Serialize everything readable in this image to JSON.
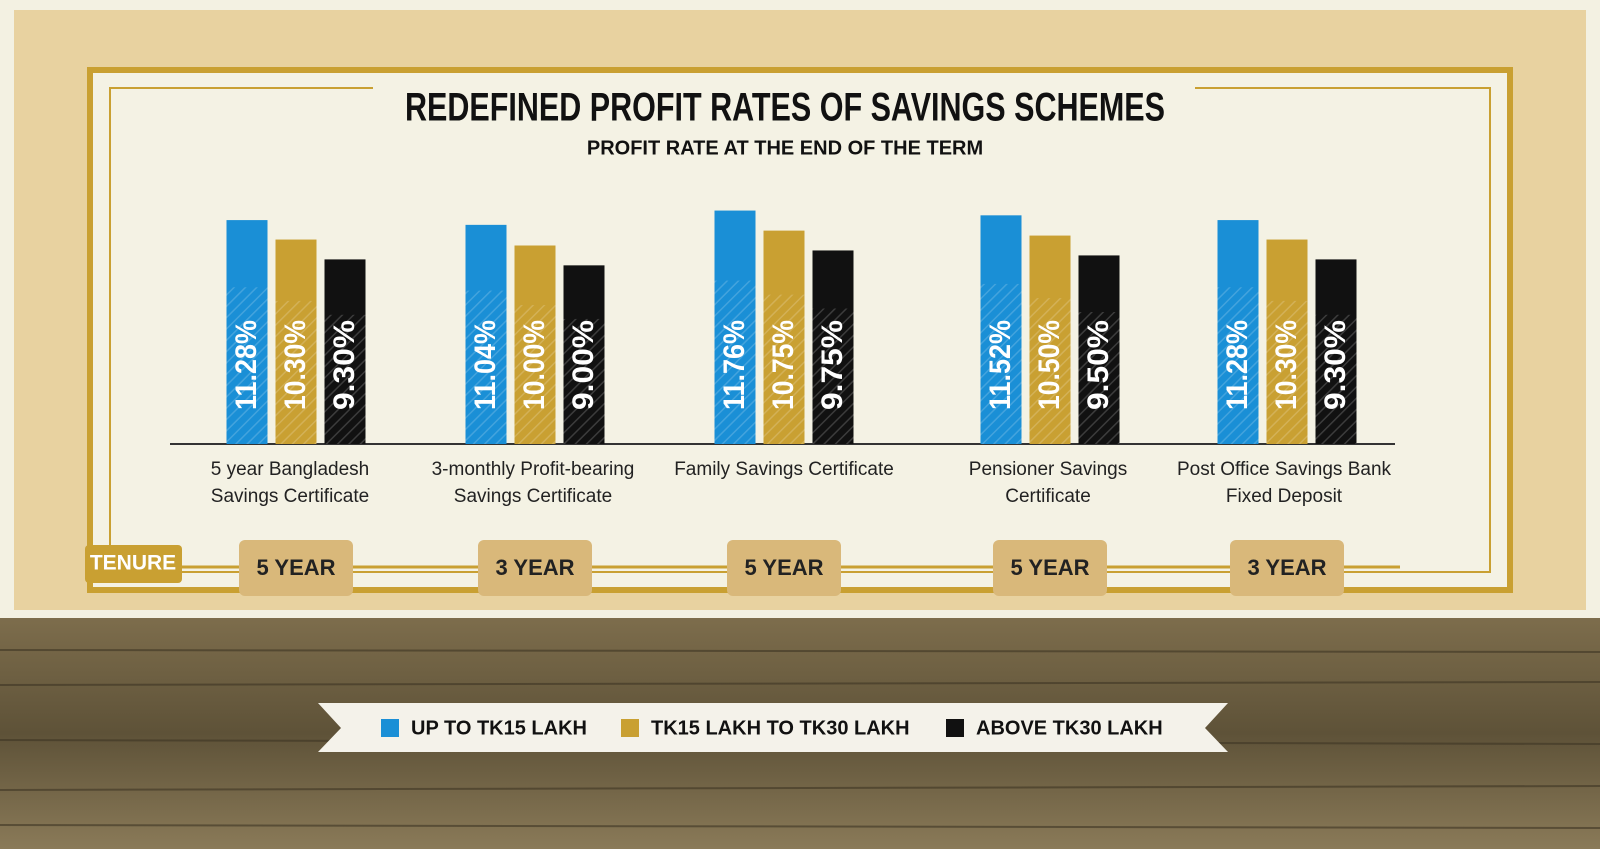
{
  "chart_data": {
    "type": "bar",
    "title": "REDEFINED PROFIT RATES OF SAVINGS SCHEMES",
    "subtitle": "PROFIT RATE AT THE END OF THE TERM",
    "categories": [
      "5 year Bangladesh Savings Certificate",
      "3-monthly Profit-bearing Savings Certificate",
      "Family Savings Certificate",
      "Pensioner Savings Certificate",
      "Post Office Savings Bank Fixed Deposit"
    ],
    "series": [
      {
        "name": "UP TO TK15 LAKH",
        "color": "#1a8fd6",
        "values": [
          11.28,
          11.04,
          11.76,
          11.52,
          11.28
        ],
        "value_labels": [
          "11.28%",
          "11.04%",
          "11.76%",
          "11.52%",
          "11.28%"
        ]
      },
      {
        "name": "TK15 LAKH TO TK30 LAKH",
        "color": "#c9a032",
        "values": [
          10.3,
          10.0,
          10.75,
          10.5,
          10.3
        ],
        "value_labels": [
          "10.30%",
          "10.00%",
          "10.75%",
          "10.50%",
          "10.30%"
        ]
      },
      {
        "name": "ABOVE TK30 LAKH",
        "color": "#111111",
        "values": [
          9.3,
          9.0,
          9.75,
          9.5,
          9.3
        ],
        "value_labels": [
          "9.30%",
          "9.00%",
          "9.75%",
          "9.50%",
          "9.30%"
        ]
      }
    ],
    "tenure_label": "TENURE",
    "tenures": [
      "5 YEAR",
      "3 YEAR",
      "5 YEAR",
      "5 YEAR",
      "3 YEAR"
    ]
  }
}
